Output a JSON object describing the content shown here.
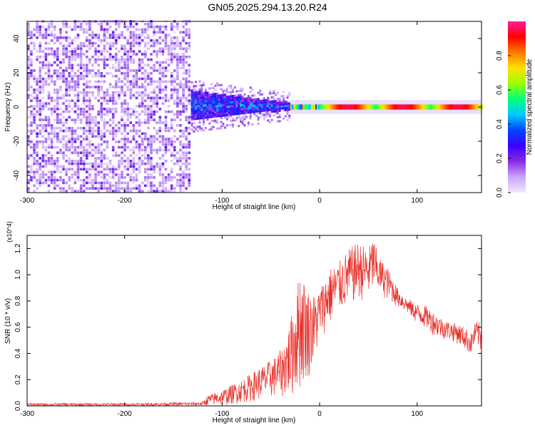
{
  "title": "GN05.2025.294.13.20.R24",
  "chart_data": [
    {
      "type": "heatmap",
      "xlabel": "Height of straight line (km)",
      "ylabel": "Frequency (Hz)",
      "xlim": [
        -300,
        166
      ],
      "ylim": [
        -50,
        50
      ],
      "x_ticks": [
        -300,
        -200,
        -100,
        0,
        100
      ],
      "y_ticks": [
        -40,
        -20,
        0,
        20,
        40
      ],
      "x_tick_labels": [
        "-300",
        "-200",
        "-100",
        "0",
        "100"
      ],
      "y_tick_labels": [
        "-40",
        "-20",
        "0",
        "20",
        "40"
      ],
      "colorbar": {
        "label": "Normalized spectral amplitude",
        "range": [
          0,
          1
        ],
        "ticks": [
          0.0,
          0.2,
          0.4,
          0.6,
          0.8
        ],
        "tick_labels": [
          "0.0",
          "0.2",
          "0.4",
          "0.6",
          "0.8"
        ],
        "colormap": [
          "#f3e8ff",
          "#c9a6ff",
          "#8a2be2",
          "#3b00ff",
          "#0044ff",
          "#00c8ff",
          "#00ff7f",
          "#9aff00",
          "#ffe000",
          "#ff7a00",
          "#ff0000",
          "#ff1f9a"
        ]
      },
      "regions": [
        {
          "x_range": [
            -300,
            -132
          ],
          "freq_range": [
            -50,
            50
          ],
          "amplitude": [
            0.02,
            0.2
          ],
          "pattern": "broadband noise"
        },
        {
          "x_range": [
            -132,
            -30
          ],
          "freq_center": 0,
          "freq_halfwidth_start": 9,
          "freq_halfwidth_end": 2,
          "amplitude": [
            0.2,
            0.45
          ]
        },
        {
          "x_range": [
            -30,
            0
          ],
          "freq_center": 0,
          "freq_halfwidth": 1.5,
          "amplitude": [
            0.4,
            0.8
          ]
        },
        {
          "x_range": [
            0,
            166
          ],
          "freq_center": 0,
          "freq_halfwidth": 1.5,
          "amplitude": [
            0.5,
            1.0
          ]
        }
      ]
    },
    {
      "type": "line",
      "xlabel": "Height of straight line (km)",
      "ylabel": "SNR (10 * v/v)",
      "y_scale_label": "(x10^4)",
      "xlim": [
        -300,
        166
      ],
      "ylim": [
        0,
        1.3
      ],
      "x_ticks": [
        -300,
        -200,
        -100,
        0,
        100
      ],
      "y_ticks": [
        0.0,
        0.2,
        0.4,
        0.6,
        0.8,
        1.0,
        1.2
      ],
      "x_tick_labels": [
        "-300",
        "-200",
        "-100",
        "0",
        "100"
      ],
      "y_tick_labels": [
        "0.0",
        "0.2",
        "0.4",
        "0.6",
        "0.8",
        "1.0",
        "1.2"
      ],
      "color": "#e8302a",
      "envelope": {
        "x": [
          -300,
          -200,
          -120,
          -115,
          -100,
          -80,
          -60,
          -45,
          -38,
          -30,
          -20,
          -12,
          -5,
          0,
          10,
          20,
          30,
          40,
          50,
          55,
          60,
          70,
          80,
          90,
          100,
          110,
          120,
          130,
          140,
          150,
          155,
          160,
          166
        ],
        "lower": [
          0.0,
          0.0,
          0.0,
          0.0,
          0.0,
          0.02,
          0.04,
          0.06,
          0.06,
          0.05,
          0.1,
          0.2,
          0.3,
          0.5,
          0.6,
          0.7,
          0.75,
          0.8,
          0.8,
          0.85,
          0.85,
          0.8,
          0.75,
          0.7,
          0.62,
          0.58,
          0.52,
          0.5,
          0.48,
          0.42,
          0.38,
          0.45,
          0.4
        ],
        "upper": [
          0.02,
          0.02,
          0.03,
          0.08,
          0.12,
          0.2,
          0.3,
          0.38,
          0.45,
          0.65,
          1.05,
          0.9,
          0.85,
          0.9,
          1.05,
          1.1,
          1.2,
          1.25,
          1.2,
          1.3,
          1.15,
          1.05,
          0.9,
          0.82,
          0.78,
          0.76,
          0.7,
          0.65,
          0.63,
          0.6,
          0.55,
          0.65,
          0.63
        ]
      }
    }
  ]
}
